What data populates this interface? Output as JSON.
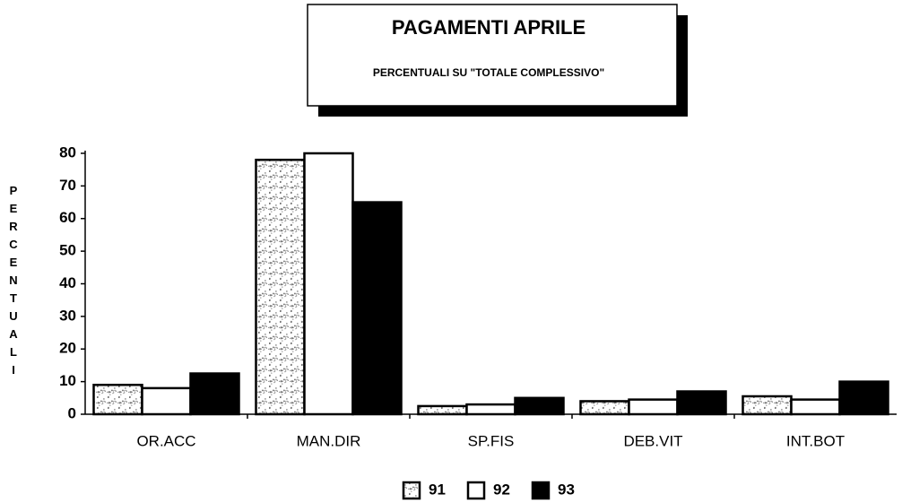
{
  "chart_data": {
    "type": "bar",
    "title": "PAGAMENTI APRILE",
    "subtitle": "PERCENTUALI SU \"TOTALE COMPLESSIVO\"",
    "y_label": "PERCENTUALI",
    "categories": [
      "OR.ACC",
      "MAN.DIR",
      "SP.FIS",
      "DEB.VIT",
      "INT.BOT"
    ],
    "series": [
      {
        "name": "91",
        "color": "#777777",
        "values": [
          9,
          78,
          2.5,
          4,
          5.5
        ]
      },
      {
        "name": "92",
        "color": "#ffffff",
        "values": [
          8,
          80,
          3,
          4.5,
          4.5
        ]
      },
      {
        "name": "93",
        "color": "#000000",
        "values": [
          12.5,
          65,
          5,
          7,
          10
        ]
      }
    ],
    "ylim": [
      0,
      80
    ],
    "yticks": [
      0,
      10,
      20,
      30,
      40,
      50,
      60,
      70,
      80
    ],
    "legend": "bottom"
  }
}
